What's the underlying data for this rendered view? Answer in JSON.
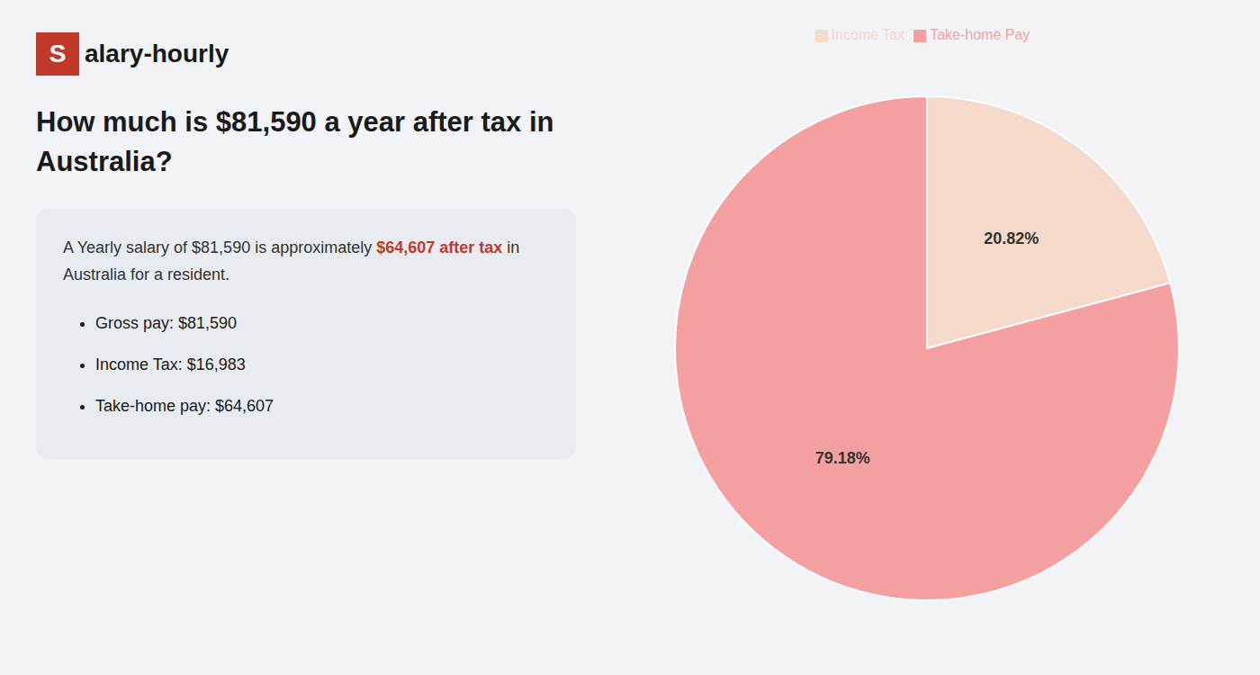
{
  "chart_data": {
    "type": "pie",
    "title": [
      "How much is $81,590 a year after tax in",
      "Australia?"
    ],
    "categories": [
      "Income Tax",
      "Take-home Pay"
    ],
    "values": [
      20.82,
      79.18
    ],
    "value_labels": [
      "20.82%",
      "79.18%"
    ],
    "colors": [
      "#f5d9cb",
      "#f4a0a0"
    ],
    "data_labels": true,
    "legend": "top",
    "annotations": [
      {
        "text": "S",
        "color": "#c0392b"
      },
      {
        "text": "alary-hourly"
      },
      {
        "text": "A Yearly salary of $81,590 is approximately "
      },
      {
        "text": "$64,607 after tax",
        "color": "#c0392b"
      },
      {
        "text": " in"
      },
      {
        "text": "Australia for a resident."
      },
      {
        "text": "Gross pay: $81,590"
      },
      {
        "text": "Income Tax: $16,983"
      },
      {
        "text": "Take-home pay: $64,607"
      }
    ]
  }
}
